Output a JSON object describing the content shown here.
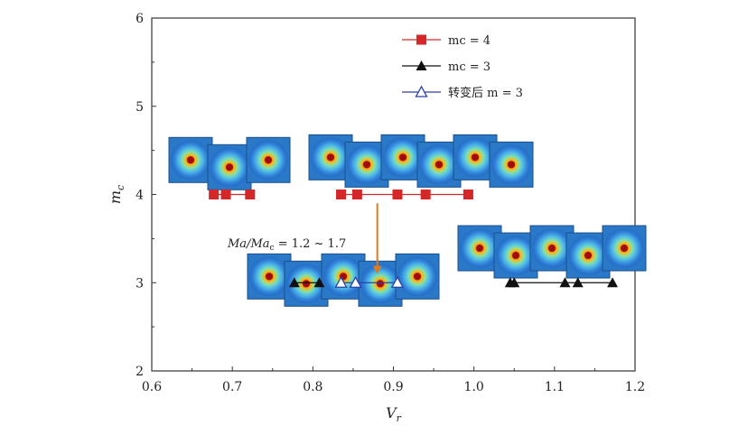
{
  "chart_data": {
    "type": "line",
    "xlabel": "Vr",
    "ylabel": "mc",
    "xlim": [
      0.6,
      1.2
    ],
    "ylim": [
      2,
      6
    ],
    "xticks": [
      "0.6",
      "0.7",
      "0.8",
      "0.9",
      "1.0",
      "1.1",
      "1.2"
    ],
    "yticks": [
      "2",
      "3",
      "4",
      "5",
      "6"
    ],
    "grid": false,
    "legend_position": "top-right",
    "colors": {
      "mc4": "#d62728",
      "mc3": "#111111",
      "after": "#2a3fa8",
      "arrow": "#e07b1a"
    },
    "legend": [
      {
        "text": "mc = 4",
        "series": 0
      },
      {
        "text": "mc = 3",
        "series": 1
      },
      {
        "text": "转变后 m = 3",
        "series": 2
      }
    ],
    "series": [
      {
        "name": "mc = 4",
        "marker": "square-filled",
        "segments": [
          {
            "x": [
              0.677,
              0.692,
              0.722
            ],
            "y": [
              4,
              4,
              4
            ]
          },
          {
            "x": [
              0.835,
              0.855,
              0.905,
              0.94,
              0.993
            ],
            "y": [
              4,
              4,
              4,
              4,
              4
            ]
          }
        ]
      },
      {
        "name": "mc = 3",
        "marker": "triangle-filled",
        "segments": [
          {
            "x": [
              0.777,
              0.808
            ],
            "y": [
              3,
              3
            ]
          },
          {
            "x": [
              1.045,
              1.05,
              1.113,
              1.129,
              1.172
            ],
            "y": [
              3,
              3,
              3,
              3,
              3
            ]
          }
        ]
      },
      {
        "name": "转变后 m = 3",
        "marker": "triangle-open",
        "segments": [
          {
            "x": [
              0.835,
              0.853,
              0.905
            ],
            "y": [
              3,
              3,
              3
            ]
          }
        ]
      }
    ],
    "annotations": [
      {
        "text": "Ma/Mac = 1.2 ~ 1.7",
        "arrow_from": [
          0.88,
          3.9
        ],
        "arrow_to": [
          0.88,
          3.1
        ]
      }
    ]
  }
}
